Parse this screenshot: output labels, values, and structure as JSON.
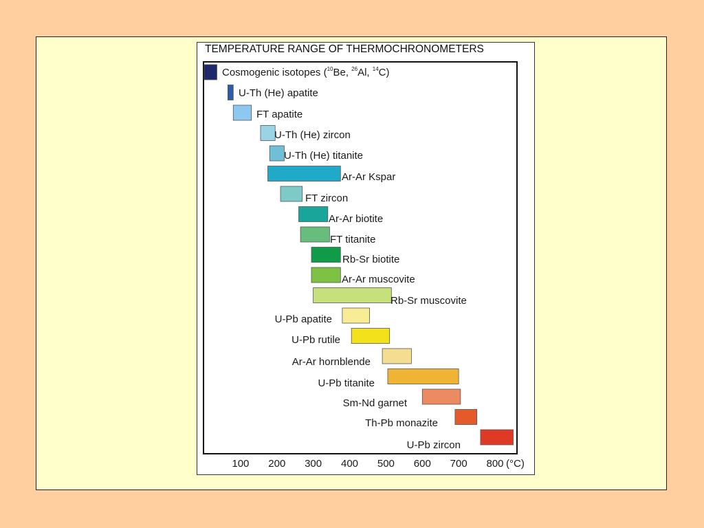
{
  "chart_data": {
    "type": "bar",
    "title": "TEMPERATURE RANGE OF THERMOCHRONOMETERS",
    "xlabel": "(°C)",
    "ylabel": "",
    "xlim": [
      0,
      850
    ],
    "x_ticks": [
      100,
      200,
      300,
      400,
      500,
      600,
      700,
      800
    ],
    "grid": false,
    "ranges": [
      {
        "label": "Cosmogenic isotopes",
        "start": 0,
        "end": 35,
        "color": "#1f2a6e"
      },
      {
        "label": "U-Th (He) apatite",
        "start": 65,
        "end": 80,
        "color": "#2c5ba8"
      },
      {
        "label": "FT apatite",
        "start": 80,
        "end": 130,
        "color": "#8ec7ef"
      },
      {
        "label": "U-Th (He) zircon",
        "start": 155,
        "end": 195,
        "color": "#9ad3e6"
      },
      {
        "label": "U-Th (He) titanite",
        "start": 180,
        "end": 220,
        "color": "#6fbfd6"
      },
      {
        "label": "Ar-Ar Kspar",
        "start": 175,
        "end": 375,
        "color": "#20a9c8"
      },
      {
        "label": "FT zircon",
        "start": 210,
        "end": 270,
        "color": "#7fcac8"
      },
      {
        "label": "Ar-Ar biotite",
        "start": 260,
        "end": 340,
        "color": "#1aa59a"
      },
      {
        "label": "FT titanite",
        "start": 265,
        "end": 345,
        "color": "#66bd7c"
      },
      {
        "label": "Rb-Sr biotite",
        "start": 295,
        "end": 375,
        "color": "#0f9b48"
      },
      {
        "label": "Ar-Ar muscovite",
        "start": 295,
        "end": 375,
        "color": "#7dc242"
      },
      {
        "label": "Rb-Sr muscovite",
        "start": 300,
        "end": 515,
        "color": "#c6e07b"
      },
      {
        "label": "U-Pb apatite",
        "start": 380,
        "end": 455,
        "color": "#f8ec94"
      },
      {
        "label": "U-Pb rutile",
        "start": 405,
        "end": 510,
        "color": "#f2e11b"
      },
      {
        "label": "Ar-Ar hornblende",
        "start": 490,
        "end": 570,
        "color": "#f4dc90"
      },
      {
        "label": "U-Pb titanite",
        "start": 505,
        "end": 700,
        "color": "#f0b434"
      },
      {
        "label": "Sm-Nd garnet",
        "start": 600,
        "end": 705,
        "color": "#ec8b62"
      },
      {
        "label": "Th-Pb monazite",
        "start": 690,
        "end": 750,
        "color": "#e55a2b"
      },
      {
        "label": "U-Pb zircon",
        "start": 760,
        "end": 850,
        "color": "#de3a26"
      }
    ],
    "label_texts": [
      "Cosmogenic isotopes (",
      "Be, ",
      "Al, ",
      "C)",
      "U-Th (He) apatite",
      "FT apatite",
      "U-Th (He) zircon",
      "U-Th (He) titanite",
      "Ar-Ar Kspar",
      "FT zircon",
      "Ar-Ar biotite",
      "FT titanite",
      "Rb-Sr biotite",
      "Ar-Ar muscovite",
      "Rb-Sr muscovite",
      "U-Pb apatite",
      "U-Pb rutile",
      "Ar-Ar hornblende",
      "U-Pb titanite",
      "Sm-Nd garnet",
      "Th-Pb monazite",
      "U-Pb zircon"
    ],
    "superscripts": [
      "10",
      "26",
      "14"
    ]
  }
}
